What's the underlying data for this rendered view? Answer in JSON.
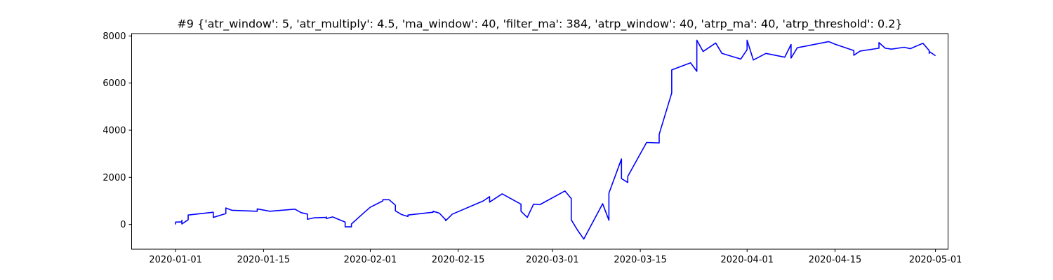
{
  "chart_data": {
    "type": "line",
    "title": "#9 {'atr_window': 5, 'atr_multiply': 4.5, 'ma_window': 40, 'filter_ma': 384, 'atrp_window': 40, 'atrp_ma': 40, 'atrp_threshold': 0.2}",
    "xlabel": "",
    "ylabel": "",
    "x_type": "date",
    "xlim": [
      "2019-12-25",
      "2020-05-03"
    ],
    "ylim": [
      -1050,
      8100
    ],
    "grid": false,
    "x_ticks": [
      {
        "value": "2020-01-01",
        "label": "2020-01-01"
      },
      {
        "value": "2020-01-15",
        "label": "2020-01-15"
      },
      {
        "value": "2020-02-01",
        "label": "2020-02-01"
      },
      {
        "value": "2020-02-15",
        "label": "2020-02-15"
      },
      {
        "value": "2020-03-01",
        "label": "2020-03-01"
      },
      {
        "value": "2020-03-15",
        "label": "2020-03-15"
      },
      {
        "value": "2020-04-01",
        "label": "2020-04-01"
      },
      {
        "value": "2020-04-15",
        "label": "2020-04-15"
      },
      {
        "value": "2020-05-01",
        "label": "2020-05-01"
      }
    ],
    "y_ticks": [
      {
        "value": 0,
        "label": "0"
      },
      {
        "value": 2000,
        "label": "2000"
      },
      {
        "value": 4000,
        "label": "4000"
      },
      {
        "value": 6000,
        "label": "6000"
      },
      {
        "value": 8000,
        "label": "8000"
      }
    ],
    "series": [
      {
        "color": "#0000ff",
        "points": [
          [
            "2020-01-01",
            0
          ],
          [
            "2020-01-01",
            100
          ],
          [
            "2020-01-02",
            110
          ],
          [
            "2020-01-02",
            130
          ],
          [
            "2020-01-02",
            80
          ],
          [
            "2020-01-02",
            180
          ],
          [
            "2020-01-02",
            20
          ],
          [
            "2020-01-03",
            200
          ],
          [
            "2020-01-03",
            400
          ],
          [
            "2020-01-07",
            520
          ],
          [
            "2020-01-07",
            300
          ],
          [
            "2020-01-09",
            460
          ],
          [
            "2020-01-09",
            700
          ],
          [
            "2020-01-10",
            600
          ],
          [
            "2020-01-14",
            560
          ],
          [
            "2020-01-14",
            660
          ],
          [
            "2020-01-16",
            560
          ],
          [
            "2020-01-20",
            650
          ],
          [
            "2020-01-21",
            500
          ],
          [
            "2020-01-22",
            440
          ],
          [
            "2020-01-22",
            220
          ],
          [
            "2020-01-23",
            280
          ],
          [
            "2020-01-25",
            300
          ],
          [
            "2020-01-25",
            320
          ],
          [
            "2020-01-25",
            250
          ],
          [
            "2020-01-26",
            320
          ],
          [
            "2020-01-28",
            100
          ],
          [
            "2020-01-28",
            -100
          ],
          [
            "2020-01-29",
            -100
          ],
          [
            "2020-01-29",
            20
          ],
          [
            "2020-01-31",
            500
          ],
          [
            "2020-02-01",
            730
          ],
          [
            "2020-02-03",
            1000
          ],
          [
            "2020-02-03",
            1050
          ],
          [
            "2020-02-04",
            1050
          ],
          [
            "2020-02-05",
            820
          ],
          [
            "2020-02-05",
            580
          ],
          [
            "2020-02-06",
            420
          ],
          [
            "2020-02-07",
            340
          ],
          [
            "2020-02-07",
            400
          ],
          [
            "2020-02-11",
            520
          ],
          [
            "2020-02-11",
            560
          ],
          [
            "2020-02-12",
            480
          ],
          [
            "2020-02-13",
            200
          ],
          [
            "2020-02-13",
            160
          ],
          [
            "2020-02-14",
            420
          ],
          [
            "2020-02-14",
            430
          ],
          [
            "2020-02-19",
            1000
          ],
          [
            "2020-02-20",
            1180
          ],
          [
            "2020-02-20",
            950
          ],
          [
            "2020-02-22",
            1300
          ],
          [
            "2020-02-25",
            860
          ],
          [
            "2020-02-25",
            560
          ],
          [
            "2020-02-26",
            300
          ],
          [
            "2020-02-27",
            860
          ],
          [
            "2020-02-28",
            840
          ],
          [
            "2020-03-03",
            1420
          ],
          [
            "2020-03-04",
            1100
          ],
          [
            "2020-03-04",
            200
          ],
          [
            "2020-03-05",
            -240
          ],
          [
            "2020-03-06",
            -620
          ],
          [
            "2020-03-09",
            880
          ],
          [
            "2020-03-10",
            180
          ],
          [
            "2020-03-10",
            1330
          ],
          [
            "2020-03-12",
            2780
          ],
          [
            "2020-03-12",
            1950
          ],
          [
            "2020-03-13",
            1780
          ],
          [
            "2020-03-13",
            2040
          ],
          [
            "2020-03-16",
            3480
          ],
          [
            "2020-03-18",
            3460
          ],
          [
            "2020-03-18",
            3820
          ],
          [
            "2020-03-20",
            5580
          ],
          [
            "2020-03-20",
            6560
          ],
          [
            "2020-03-23",
            6860
          ],
          [
            "2020-03-24",
            6500
          ],
          [
            "2020-03-24",
            7820
          ],
          [
            "2020-03-25",
            7340
          ],
          [
            "2020-03-27",
            7700
          ],
          [
            "2020-03-28",
            7260
          ],
          [
            "2020-03-31",
            7020
          ],
          [
            "2020-04-01",
            7420
          ],
          [
            "2020-04-01",
            7820
          ],
          [
            "2020-04-02",
            6980
          ],
          [
            "2020-04-04",
            7260
          ],
          [
            "2020-04-07",
            7100
          ],
          [
            "2020-04-08",
            7640
          ],
          [
            "2020-04-08",
            7060
          ],
          [
            "2020-04-09",
            7500
          ],
          [
            "2020-04-14",
            7760
          ],
          [
            "2020-04-15",
            7650
          ],
          [
            "2020-04-18",
            7380
          ],
          [
            "2020-04-18",
            7180
          ],
          [
            "2020-04-19",
            7360
          ],
          [
            "2020-04-22",
            7480
          ],
          [
            "2020-04-22",
            7720
          ],
          [
            "2020-04-23",
            7480
          ],
          [
            "2020-04-24",
            7440
          ],
          [
            "2020-04-26",
            7520
          ],
          [
            "2020-04-27",
            7460
          ],
          [
            "2020-04-29",
            7690
          ],
          [
            "2020-04-30",
            7380
          ],
          [
            "2020-04-30",
            7260
          ],
          [
            "2020-04-30",
            7340
          ],
          [
            "2020-05-01",
            7160
          ]
        ]
      }
    ]
  }
}
